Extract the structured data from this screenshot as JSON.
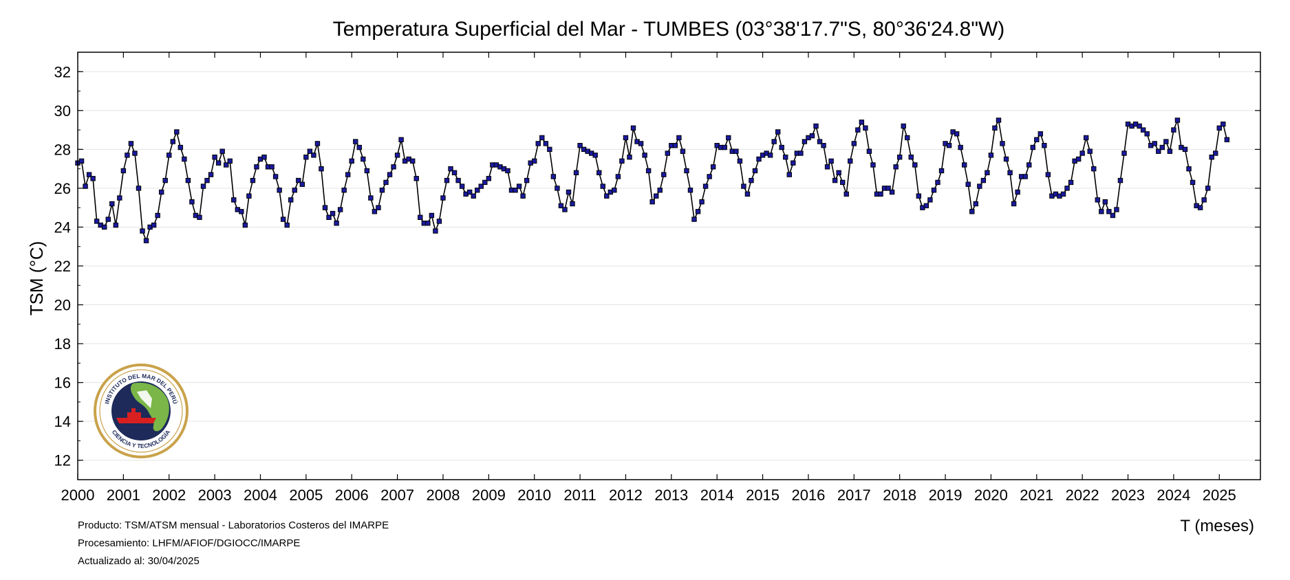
{
  "chart_data": {
    "type": "line",
    "title": "Temperatura Superficial del Mar - TUMBES (03°38'17.7\"S, 80°36'24.8\"W)",
    "xlabel": "T (meses)",
    "ylabel": "TSM (°C)",
    "xlim": [
      2000.0,
      2025.9
    ],
    "ylim": [
      11,
      33
    ],
    "yticks": [
      12,
      14,
      16,
      18,
      20,
      22,
      24,
      26,
      28,
      30,
      32
    ],
    "xticks": [
      "2000",
      "2001",
      "2002",
      "2003",
      "2004",
      "2005",
      "2006",
      "2007",
      "2008",
      "2009",
      "2010",
      "2011",
      "2012",
      "2013",
      "2014",
      "2015",
      "2016",
      "2017",
      "2018",
      "2019",
      "2020",
      "2021",
      "2022",
      "2023",
      "2024",
      "2025"
    ],
    "grid": "horizontal",
    "line_color": "#000000",
    "marker_color": "#1a1aa0",
    "start": "2000-01",
    "frequency": "monthly",
    "series": [
      {
        "values": [
          27.3,
          27.4,
          26.1,
          26.7,
          26.5,
          24.3,
          24.1,
          24.0,
          24.4,
          25.2,
          24.1,
          25.5,
          26.9,
          27.7,
          28.3,
          27.8,
          26.0,
          23.8,
          23.3,
          24.0,
          24.1,
          24.6,
          25.8,
          26.4,
          27.7,
          28.4,
          28.9,
          28.1,
          27.5,
          26.4,
          25.3,
          24.6,
          24.5,
          26.1,
          26.4,
          26.7,
          27.6,
          27.3,
          27.9,
          27.2,
          27.4,
          25.4,
          24.9,
          24.8,
          24.1,
          25.6,
          26.4,
          27.1,
          27.5,
          27.6,
          27.1,
          27.1,
          26.6,
          25.9,
          24.4,
          24.1,
          25.4,
          25.9,
          26.4,
          26.2,
          27.6,
          27.9,
          27.7,
          28.3,
          27.0,
          25.0,
          24.5,
          24.7,
          24.2,
          24.9,
          25.9,
          26.7,
          27.4,
          28.4,
          28.1,
          27.5,
          26.9,
          25.5,
          24.8,
          25.0,
          25.9,
          26.3,
          26.7,
          27.1,
          27.7,
          28.5,
          27.4,
          27.5,
          27.4,
          26.5,
          24.5,
          24.2,
          24.2,
          24.6,
          23.8,
          24.3,
          25.5,
          26.4,
          27.0,
          26.8,
          26.4,
          26.1,
          25.7,
          25.8,
          25.6,
          25.9,
          26.1,
          26.3,
          26.5,
          27.2,
          27.2,
          27.1,
          27.0,
          26.9,
          25.9,
          25.9,
          26.1,
          25.6,
          26.4,
          27.3,
          27.4,
          28.3,
          28.6,
          28.3,
          28.0,
          26.6,
          26.0,
          25.1,
          24.9,
          25.8,
          25.2,
          26.8,
          28.2,
          28.0,
          27.9,
          27.8,
          27.7,
          26.8,
          26.1,
          25.6,
          25.8,
          25.9,
          26.6,
          27.4,
          28.6,
          27.6,
          29.1,
          28.4,
          28.3,
          27.7,
          26.9,
          25.3,
          25.6,
          25.9,
          26.7,
          27.8,
          28.2,
          28.2,
          28.6,
          27.9,
          26.9,
          25.9,
          24.4,
          24.8,
          25.3,
          26.1,
          26.6,
          27.1,
          28.2,
          28.1,
          28.1,
          28.6,
          27.9,
          27.9,
          27.4,
          26.1,
          25.7,
          26.4,
          26.9,
          27.5,
          27.7,
          27.8,
          27.7,
          28.4,
          28.9,
          28.1,
          27.6,
          26.7,
          27.3,
          27.8,
          27.8,
          28.4,
          28.6,
          28.7,
          29.2,
          28.4,
          28.2,
          27.1,
          27.4,
          26.4,
          26.8,
          26.3,
          25.7,
          27.4,
          28.3,
          29.0,
          29.4,
          29.1,
          27.9,
          27.2,
          25.7,
          25.7,
          26.0,
          26.0,
          25.8,
          27.1,
          27.6,
          29.2,
          28.6,
          27.6,
          27.2,
          25.6,
          25.0,
          25.1,
          25.4,
          25.9,
          26.3,
          26.9,
          28.3,
          28.2,
          28.9,
          28.8,
          28.1,
          27.2,
          26.2,
          24.8,
          25.2,
          26.1,
          26.4,
          26.8,
          27.7,
          29.1,
          29.5,
          28.3,
          27.5,
          26.8,
          25.2,
          25.8,
          26.6,
          26.6,
          27.2,
          28.1,
          28.5,
          28.8,
          28.2,
          26.7,
          25.6,
          25.7,
          25.6,
          25.7,
          26.0,
          26.3,
          27.4,
          27.5,
          27.8,
          28.6,
          27.9,
          27.0,
          25.4,
          24.8,
          25.3,
          24.8,
          24.6,
          24.9,
          26.4,
          27.8,
          29.3,
          29.2,
          29.3,
          29.2,
          29.0,
          28.8,
          28.2,
          28.3,
          27.9,
          28.1,
          28.4,
          27.9,
          29.0,
          29.5,
          28.1,
          28.0,
          27.0,
          26.3,
          25.1,
          25.0,
          25.4,
          26.0,
          27.6,
          27.8,
          29.1,
          29.3,
          28.5
        ]
      }
    ]
  },
  "footer": {
    "line1": "Producto: TSM/ATSM mensual - Laboratorios Costeros del IMARPE",
    "line2": "Procesamiento: LHFM/AFIOF/DGIOCC/IMARPE",
    "line3": "Actualizado al: 30/04/2025"
  },
  "logo": {
    "top_text": "INSTITUTO DEL MAR DEL PERÚ",
    "bottom_text": "CIENCIA Y TECNOLOGÍA",
    "ring_color": "#c9a24a",
    "sea_color": "#1d2a5a",
    "land_color": "#7ab648",
    "ship_color": "#d82020"
  }
}
